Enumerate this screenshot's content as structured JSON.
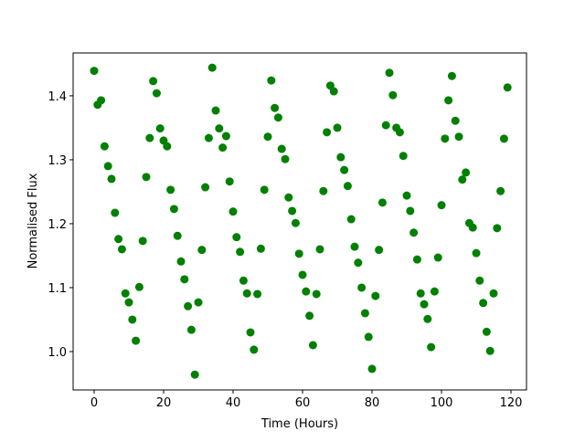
{
  "chart_data": {
    "type": "scatter",
    "xlabel": "Time (Hours)",
    "ylabel": "Normalised Flux",
    "color": "#008000",
    "x": [
      0,
      1,
      2,
      3,
      4,
      5,
      6,
      7,
      8,
      9,
      10,
      11,
      12,
      13,
      14,
      15,
      16,
      17,
      18,
      19,
      20,
      21,
      22,
      23,
      24,
      25,
      26,
      27,
      28,
      29,
      30,
      31,
      32,
      33,
      34,
      35,
      36,
      37,
      38,
      39,
      40,
      41,
      42,
      43,
      44,
      45,
      46,
      47,
      48,
      49,
      50,
      51,
      52,
      53,
      54,
      55,
      56,
      57,
      58,
      59,
      60,
      61,
      62,
      63,
      64,
      65,
      66,
      67,
      68,
      69,
      70,
      71,
      72,
      73,
      74,
      75,
      76,
      77,
      78,
      79,
      80,
      81,
      82,
      83,
      84,
      85,
      86,
      87,
      88,
      89,
      90,
      91,
      92,
      93,
      94,
      95,
      96,
      97,
      98,
      99,
      100,
      101,
      102,
      103,
      104,
      105,
      106,
      107,
      108,
      109,
      110,
      111,
      112,
      113,
      114,
      115,
      116,
      117,
      118,
      119
    ],
    "values": [
      1.439,
      1.386,
      1.393,
      1.321,
      1.29,
      1.27,
      1.217,
      1.176,
      1.16,
      1.091,
      1.077,
      1.05,
      1.017,
      1.101,
      1.173,
      1.273,
      1.334,
      1.423,
      1.404,
      1.349,
      1.33,
      1.321,
      1.253,
      1.223,
      1.181,
      1.141,
      1.113,
      1.071,
      1.034,
      0.964,
      1.077,
      1.159,
      1.257,
      1.334,
      1.444,
      1.377,
      1.349,
      1.319,
      1.337,
      1.266,
      1.219,
      1.179,
      1.156,
      1.111,
      1.091,
      1.03,
      1.003,
      1.09,
      1.161,
      1.253,
      1.336,
      1.424,
      1.381,
      1.366,
      1.317,
      1.301,
      1.241,
      1.22,
      1.201,
      1.153,
      1.12,
      1.094,
      1.056,
      1.01,
      1.09,
      1.16,
      1.251,
      1.343,
      1.416,
      1.407,
      1.35,
      1.304,
      1.284,
      1.259,
      1.207,
      1.164,
      1.139,
      1.1,
      1.06,
      1.023,
      0.973,
      1.087,
      1.159,
      1.233,
      1.354,
      1.436,
      1.401,
      1.35,
      1.343,
      1.306,
      1.244,
      1.22,
      1.186,
      1.144,
      1.091,
      1.074,
      1.051,
      1.007,
      1.094,
      1.147,
      1.229,
      1.333,
      1.393,
      1.431,
      1.361,
      1.336,
      1.269,
      1.28,
      1.201,
      1.194,
      1.154,
      1.111,
      1.076,
      1.031,
      1.001,
      1.091,
      1.193,
      1.251,
      1.333,
      1.413
    ],
    "xlim": [
      -6.05,
      124.47
    ],
    "ylim": [
      0.94,
      1.467
    ],
    "xticks": [
      0,
      20,
      40,
      60,
      80,
      100,
      120
    ],
    "yticks": [
      {
        "value": 1,
        "label": "1.0"
      },
      1.1,
      1.2,
      1.3,
      1.4
    ]
  }
}
